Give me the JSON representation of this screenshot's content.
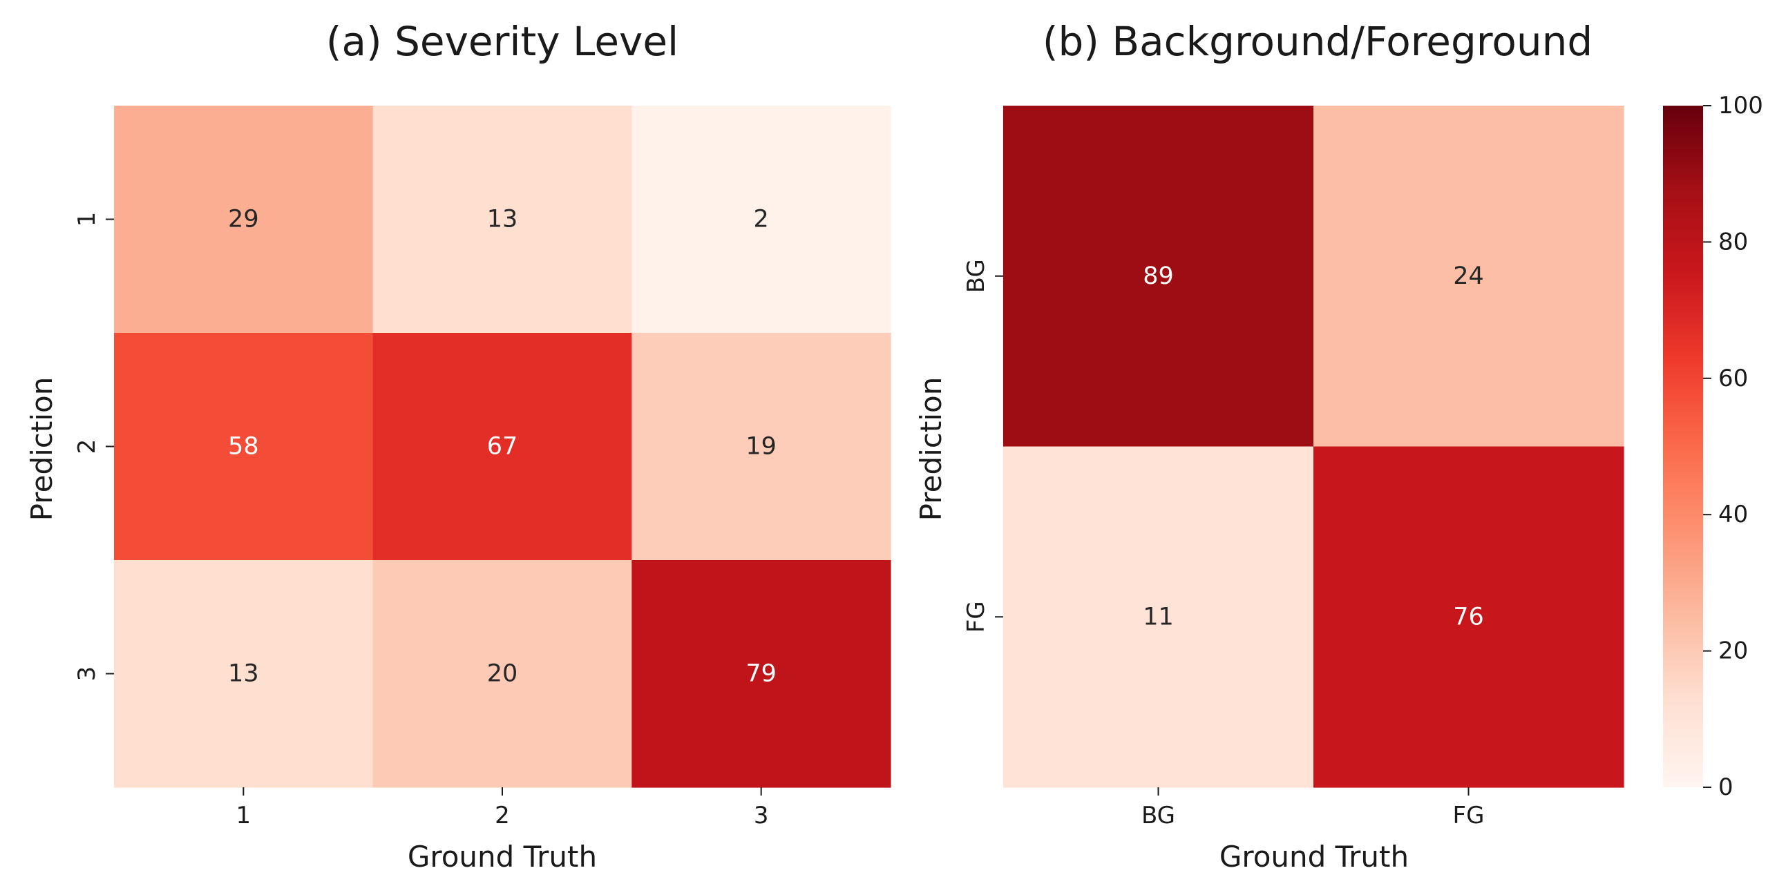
{
  "chart_data": [
    {
      "type": "heatmap",
      "title": "(a) Severity Level",
      "xlabel": "Ground Truth",
      "ylabel": "Prediction",
      "x_categories": [
        "1",
        "2",
        "3"
      ],
      "y_categories": [
        "1",
        "2",
        "3"
      ],
      "values": [
        [
          29,
          13,
          2
        ],
        [
          58,
          67,
          19
        ],
        [
          13,
          20,
          79
        ]
      ],
      "colormap": "Reds",
      "vmin": 0,
      "vmax": 100
    },
    {
      "type": "heatmap",
      "title": "(b) Background/Foreground",
      "xlabel": "Ground Truth",
      "ylabel": "Prediction",
      "x_categories": [
        "BG",
        "FG"
      ],
      "y_categories": [
        "BG",
        "FG"
      ],
      "values": [
        [
          89,
          24
        ],
        [
          11,
          76
        ]
      ],
      "colormap": "Reds",
      "vmin": 0,
      "vmax": 100
    }
  ],
  "colorbar": {
    "ticks": [
      "0",
      "20",
      "40",
      "60",
      "80",
      "100"
    ],
    "range": [
      0,
      100
    ]
  },
  "colors": {
    "text_dark": "#262626",
    "text_light": "#ffffff",
    "axis": "#1a1a1a"
  }
}
